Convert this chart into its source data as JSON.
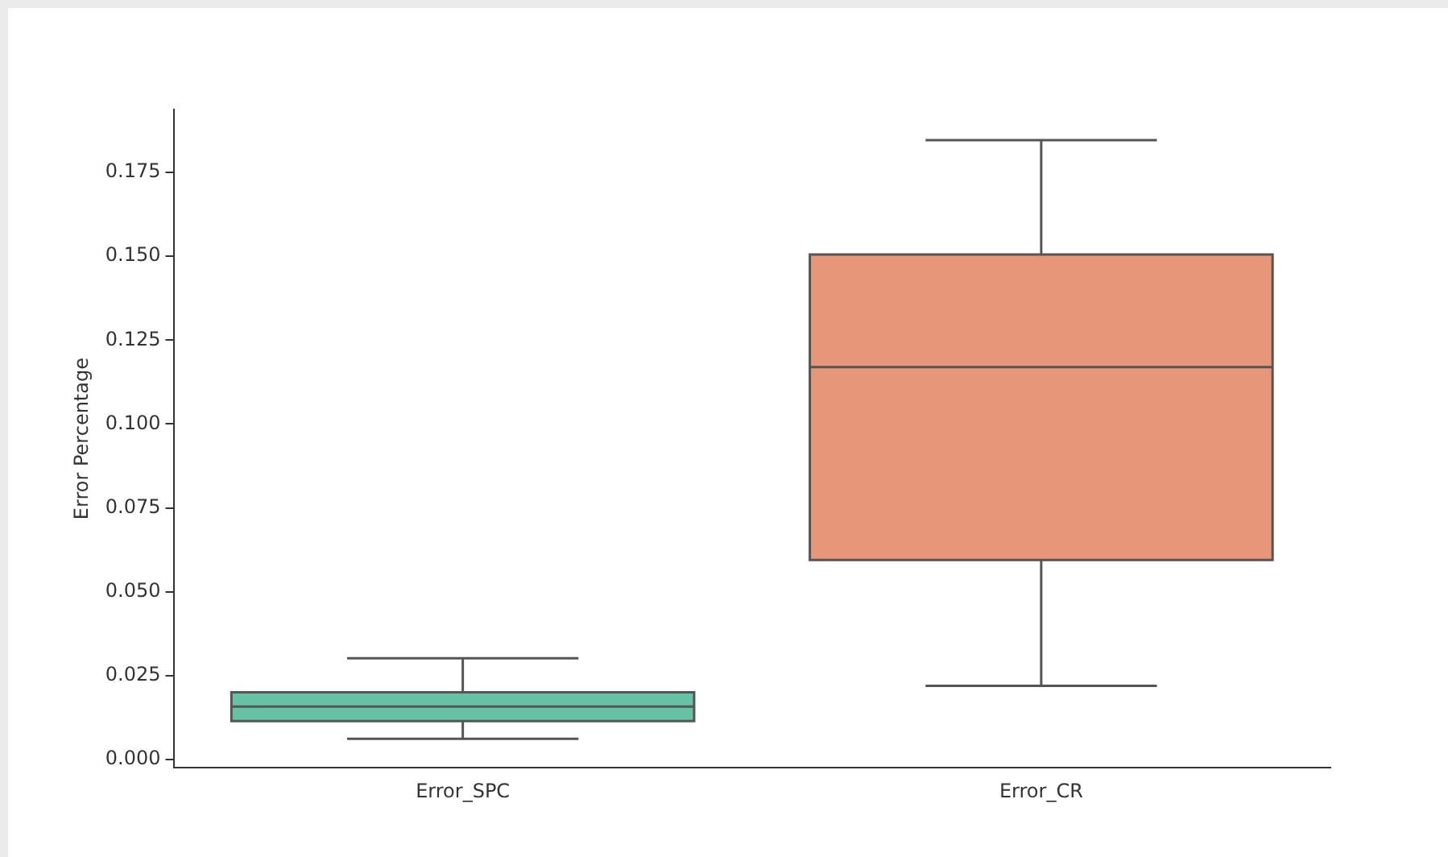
{
  "chart_data": {
    "type": "box",
    "ylabel": "Error Percentage",
    "categories": [
      "Error_SPC",
      "Error_CR"
    ],
    "colors": [
      "#66c2a5",
      "#e8967a"
    ],
    "boxes": [
      {
        "low": 0.0062,
        "q1": 0.0115,
        "median": 0.0158,
        "q3": 0.0201,
        "high": 0.0302
      },
      {
        "low": 0.022,
        "q1": 0.0595,
        "median": 0.117,
        "q3": 0.1505,
        "high": 0.1846
      }
    ],
    "ylim": [
      -0.0024,
      0.1937
    ],
    "yticks": [
      {
        "value": 0,
        "label": "0.000"
      },
      0.025,
      {
        "value": 0.05,
        "label": "0.050"
      },
      0.075,
      {
        "value": 0.1,
        "label": "0.100"
      },
      0.125,
      {
        "value": 0.15,
        "label": "0.150"
      },
      0.175
    ],
    "grid": false,
    "legend": false
  }
}
